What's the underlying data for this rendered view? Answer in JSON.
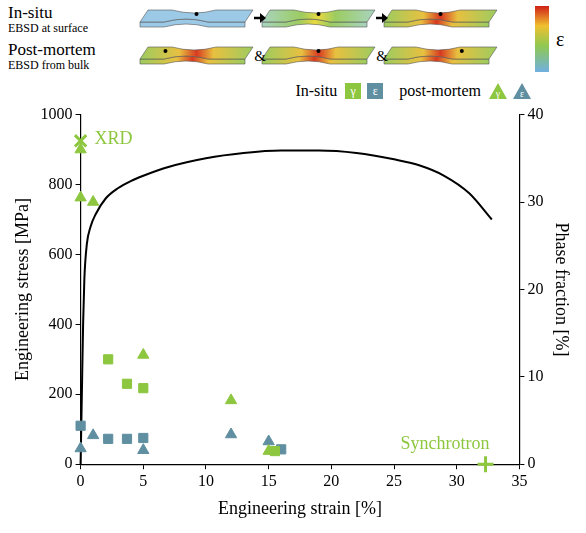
{
  "schematic": {
    "rows": [
      {
        "label": "In-situ",
        "sublabel": "EBSD at surface",
        "arrows": true
      },
      {
        "label": "Post-mortem",
        "sublabel": "EBSD from bulk",
        "between": "&"
      }
    ],
    "colorbar_label": "ε"
  },
  "chart_data": {
    "type": "line",
    "x_label": "Engineering strain [%]",
    "y_label": "Engineering stress [MPa]",
    "y2_label": "Phase fraction [%]",
    "xlim": [
      0,
      35
    ],
    "xticks": [
      0,
      5,
      10,
      15,
      20,
      25,
      30,
      35
    ],
    "ylim": [
      0,
      1000
    ],
    "yticks": [
      0,
      200,
      400,
      600,
      800,
      1000
    ],
    "y2lim": [
      0,
      40
    ],
    "y2ticks": [
      0,
      10,
      20,
      30,
      40
    ],
    "grid": false,
    "legend": "top right",
    "series": [
      {
        "type": "line",
        "color": "#000000",
        "line_style": "solid",
        "x": [
          0,
          0.1,
          0.2,
          0.3,
          0.5,
          0.8,
          1.2,
          2,
          3,
          4,
          5,
          7,
          10,
          13,
          16,
          19,
          22,
          25,
          27,
          29,
          31,
          32.8
        ],
        "values": [
          0,
          200,
          400,
          530,
          630,
          680,
          715,
          760,
          790,
          810,
          825,
          850,
          875,
          890,
          897,
          897,
          890,
          872,
          855,
          825,
          775,
          700
        ]
      },
      {
        "name": "γ",
        "group": "In-situ",
        "type": "scatter",
        "marker": "square",
        "color": "#8dc63f",
        "axis": "y2",
        "x": [
          2.2,
          3.7,
          5,
          15.5
        ],
        "values": [
          12,
          9.2,
          8.7,
          1.5
        ]
      },
      {
        "name": "ε",
        "group": "In-situ",
        "type": "scatter",
        "marker": "square",
        "color": "#5f8fa0",
        "axis": "y2",
        "x": [
          0,
          2.2,
          3.7,
          5,
          16
        ],
        "values": [
          4.4,
          2.9,
          2.9,
          3.0,
          1.7
        ]
      },
      {
        "name": "γ",
        "group": "post-mortem",
        "type": "scatter",
        "marker": "triangle",
        "color": "#8dc63f",
        "axis": "y2",
        "x": [
          0,
          0,
          1,
          5,
          12,
          15
        ],
        "values": [
          36,
          30.5,
          30,
          12.5,
          7.3,
          1.5
        ]
      },
      {
        "name": "ε",
        "group": "post-mortem",
        "type": "scatter",
        "marker": "triangle",
        "color": "#5f8fa0",
        "axis": "y2",
        "x": [
          0,
          1,
          5,
          12,
          15
        ],
        "values": [
          1.8,
          3.3,
          1.6,
          3.4,
          2.6
        ]
      },
      {
        "name": "XRD",
        "type": "scatter",
        "marker": "x",
        "color": "#8dc63f",
        "axis": "y2",
        "x": [
          0
        ],
        "values": [
          37
        ]
      },
      {
        "name": "Synchrotron",
        "type": "scatter",
        "marker": "plus",
        "color": "#8dc63f",
        "axis": "y2",
        "x": [
          32.3
        ],
        "values": [
          0
        ]
      }
    ]
  }
}
